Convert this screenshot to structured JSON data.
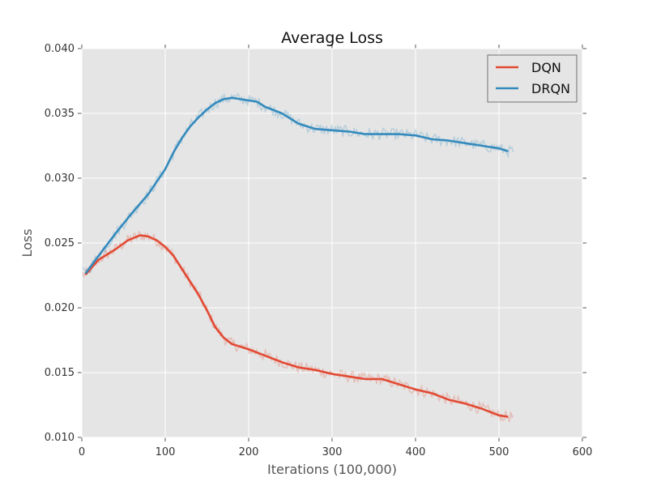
{
  "chart_data": {
    "type": "line",
    "title": "Average Loss",
    "xlabel": "Iterations (100,000)",
    "ylabel": "Loss",
    "xlim": [
      0,
      600
    ],
    "ylim": [
      0.01,
      0.04
    ],
    "x_ticks": [
      0,
      100,
      200,
      300,
      400,
      500,
      600
    ],
    "x_tick_labels": [
      "0",
      "100",
      "200",
      "300",
      "400",
      "500",
      "600"
    ],
    "y_ticks": [
      0.01,
      0.015,
      0.02,
      0.025,
      0.03,
      0.035,
      0.04
    ],
    "y_tick_labels": [
      "0.010",
      "0.015",
      "0.020",
      "0.025",
      "0.030",
      "0.035",
      "0.040"
    ],
    "grid": true,
    "legend_position": "top-right",
    "series": [
      {
        "name": "DQN",
        "color": "#e24a33",
        "x": [
          5,
          20,
          40,
          55,
          70,
          80,
          90,
          100,
          110,
          120,
          130,
          140,
          150,
          160,
          170,
          180,
          190,
          200,
          220,
          240,
          260,
          280,
          300,
          320,
          340,
          360,
          380,
          400,
          420,
          440,
          460,
          480,
          500,
          510
        ],
        "y": [
          0.0226,
          0.0237,
          0.0245,
          0.0252,
          0.0256,
          0.0255,
          0.0252,
          0.0247,
          0.024,
          0.023,
          0.022,
          0.021,
          0.0198,
          0.0185,
          0.0177,
          0.0172,
          0.017,
          0.0168,
          0.0163,
          0.0158,
          0.0154,
          0.0152,
          0.0149,
          0.0147,
          0.0145,
          0.0145,
          0.0141,
          0.0137,
          0.0134,
          0.0129,
          0.0126,
          0.0122,
          0.0117,
          0.0116
        ]
      },
      {
        "name": "DRQN",
        "color": "#348abd",
        "x": [
          5,
          20,
          40,
          60,
          80,
          100,
          110,
          120,
          130,
          140,
          150,
          160,
          170,
          180,
          190,
          200,
          210,
          220,
          240,
          260,
          280,
          300,
          320,
          340,
          360,
          380,
          400,
          420,
          440,
          460,
          480,
          500,
          510
        ],
        "y": [
          0.0227,
          0.024,
          0.0257,
          0.0273,
          0.0288,
          0.0307,
          0.032,
          0.0331,
          0.034,
          0.0347,
          0.0353,
          0.0358,
          0.0361,
          0.0362,
          0.0361,
          0.036,
          0.0359,
          0.0355,
          0.035,
          0.0342,
          0.0338,
          0.0337,
          0.0336,
          0.0334,
          0.0334,
          0.0334,
          0.0333,
          0.033,
          0.0329,
          0.0327,
          0.0325,
          0.0323,
          0.0321
        ]
      }
    ]
  }
}
